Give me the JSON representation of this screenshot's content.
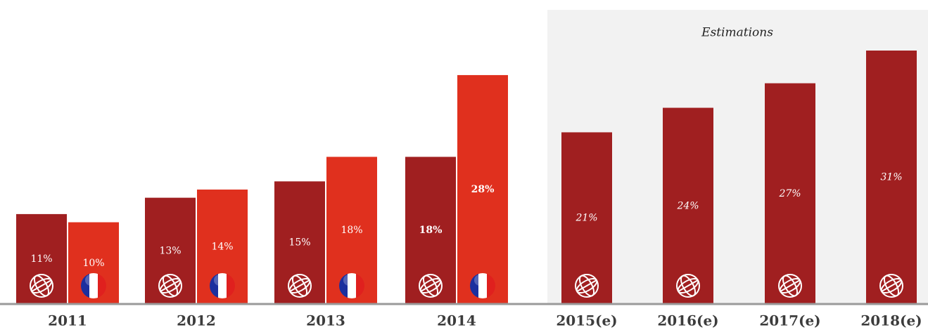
{
  "chart_data": {
    "type": "bar",
    "annotation": "Estimations",
    "categories": [
      "2011",
      "2012",
      "2013",
      "2014",
      "2015(e)",
      "2016(e)",
      "2017(e)",
      "2018(e)"
    ],
    "series": [
      {
        "color": "#a01f20",
        "values": [
          11,
          13,
          15,
          18,
          21,
          24,
          27,
          31
        ],
        "value_labels": [
          "11%",
          "13%",
          "15%",
          "18%",
          "21%",
          "24%",
          "27%",
          "31%"
        ]
      },
      {
        "color": "#e0301e",
        "values": [
          10,
          14,
          18,
          28,
          null,
          null,
          null,
          null
        ],
        "value_labels": [
          "10%",
          "14%",
          "18%",
          "28%",
          null,
          null,
          null,
          null
        ]
      }
    ]
  }
}
